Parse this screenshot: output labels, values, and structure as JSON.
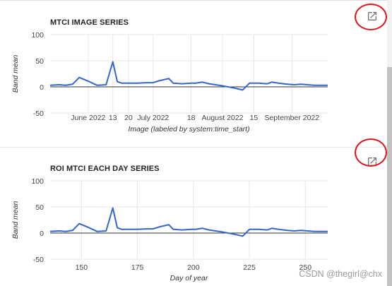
{
  "panels": [
    {
      "title": "MTCI IMAGE SERIES",
      "open_icon": "open-in-new-icon",
      "chart_data": {
        "type": "line",
        "ylabel": "Band mean",
        "xlabel": "Image (labeled by system:time_start)",
        "ylim": [
          -50,
          100
        ],
        "yticks": [
          100,
          50,
          0,
          -50
        ],
        "grid": true,
        "xticks": [
          {
            "label": "June 2022",
            "x": 153
          },
          {
            "label": "13",
            "x": 164
          },
          {
            "label": "20",
            "x": 171
          },
          {
            "label": "July 2022",
            "x": 182
          },
          {
            "label": "18",
            "x": 199
          },
          {
            "label": "August 2022",
            "x": 213
          },
          {
            "label": "15",
            "x": 227
          },
          {
            "label": "September 2022",
            "x": 244
          }
        ],
        "xrange": [
          136,
          260
        ],
        "series": [
          {
            "color": "#3366cc",
            "x": [
              136,
              140,
              143,
              146,
              149,
              153,
              157,
              161,
              164,
              166,
              168,
              171,
              175,
              179,
              182,
              185,
              189,
              191,
              195,
              199,
              201,
              204,
              207,
              213,
              219,
              222,
              225,
              229,
              233,
              235,
              238,
              242,
              245,
              248,
              251,
              254,
              257,
              260
            ],
            "y": [
              3,
              4,
              3,
              5,
              18,
              11,
              3,
              4,
              48,
              10,
              7,
              7,
              7,
              8,
              8,
              12,
              16,
              7,
              6,
              7,
              7,
              9,
              6,
              2,
              -3,
              -6,
              7,
              7,
              6,
              9,
              7,
              5,
              4,
              5,
              4,
              3,
              3,
              3
            ]
          }
        ]
      }
    },
    {
      "title": "ROI MTCI EACH DAY SERIES",
      "open_icon": "open-in-new-icon",
      "chart_data": {
        "type": "line",
        "ylabel": "Band mean",
        "xlabel": "Day of year",
        "ylim": [
          -50,
          100
        ],
        "yticks": [
          100,
          50,
          0,
          -50
        ],
        "grid": true,
        "xticks": [
          {
            "label": "150",
            "x": 150
          },
          {
            "label": "175",
            "x": 175
          },
          {
            "label": "200",
            "x": 200
          },
          {
            "label": "225",
            "x": 225
          },
          {
            "label": "250",
            "x": 250
          }
        ],
        "xrange": [
          136,
          260
        ],
        "series": [
          {
            "color": "#3366cc",
            "x": [
              136,
              140,
              143,
              146,
              149,
              153,
              157,
              161,
              164,
              166,
              168,
              171,
              175,
              179,
              182,
              185,
              189,
              191,
              195,
              199,
              201,
              204,
              207,
              213,
              219,
              222,
              225,
              229,
              233,
              235,
              238,
              242,
              245,
              248,
              251,
              254,
              257,
              260
            ],
            "y": [
              3,
              4,
              3,
              5,
              18,
              11,
              3,
              4,
              48,
              10,
              7,
              7,
              7,
              8,
              8,
              12,
              16,
              7,
              6,
              7,
              7,
              9,
              6,
              2,
              -3,
              -6,
              7,
              7,
              6,
              9,
              7,
              5,
              4,
              5,
              4,
              3,
              3,
              3
            ]
          }
        ]
      }
    }
  ],
  "watermark": "CSDN @thegirl@chx"
}
